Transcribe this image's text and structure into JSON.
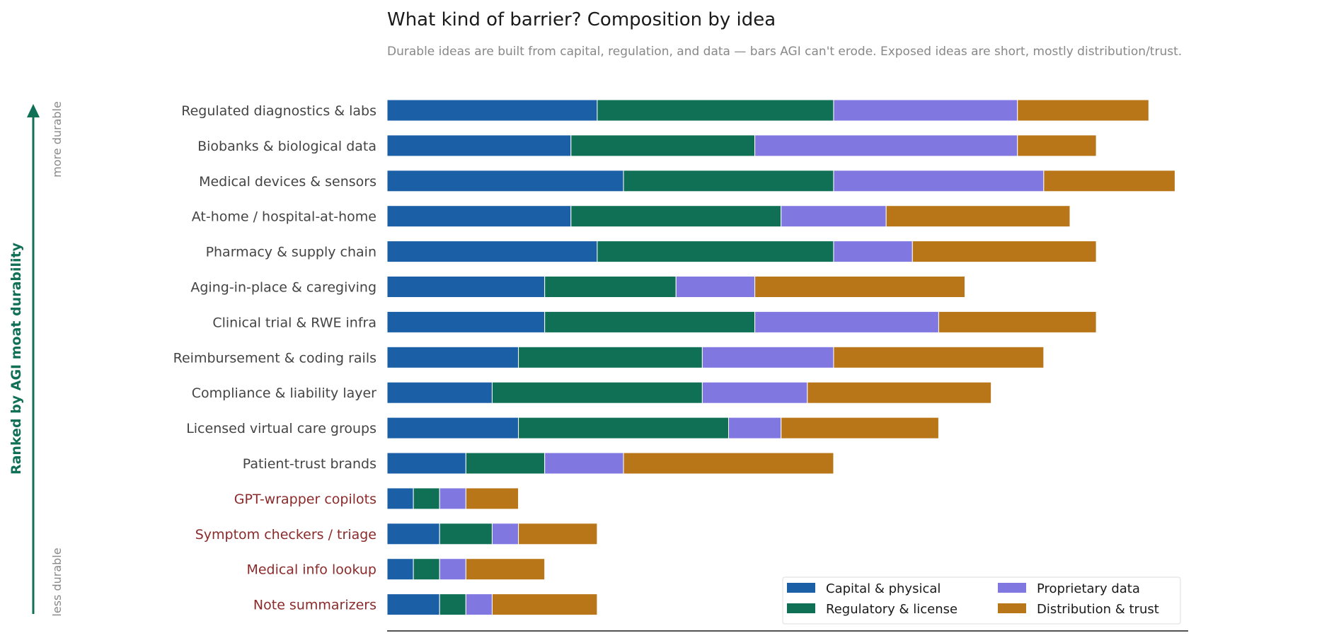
{
  "chart_data": {
    "type": "bar",
    "orientation": "horizontal",
    "stacked": true,
    "title": "What kind of barrier? Composition by idea",
    "subtitle": "Durable ideas are built from capital, regulation, and data — bars AGI can't erode. Exposed ideas are short, mostly distribution/trust.",
    "ylabel": "Ranked by AGI moat durability",
    "top_annotation": "more durable",
    "bottom_annotation": "less durable",
    "xlim": [
      0,
      30.5
    ],
    "grid": false,
    "legend_position": "bottom-right",
    "categories": [
      "Regulated diagnostics & labs",
      "Biobanks & biological data",
      "Medical devices & sensors",
      "At-home / hospital-at-home",
      "Pharmacy & supply chain",
      "Aging-in-place & caregiving",
      "Clinical trial & RWE infra",
      "Reimbursement & coding rails",
      "Compliance & liability layer",
      "Licensed virtual care groups",
      "Patient-trust brands",
      "GPT-wrapper copilots",
      "Symptom checkers / triage",
      "Medical info lookup",
      "Note summarizers"
    ],
    "exposed_categories": [
      "GPT-wrapper copilots",
      "Symptom checkers / triage",
      "Medical info lookup",
      "Note summarizers"
    ],
    "series": [
      {
        "name": "Capital & physical",
        "color": "#1b5fa7",
        "values": [
          8,
          7,
          9,
          7,
          8,
          6,
          6,
          5,
          4,
          5,
          3,
          1,
          2,
          1,
          2
        ]
      },
      {
        "name": "Regulatory & license",
        "color": "#0f7055",
        "values": [
          9,
          7,
          8,
          8,
          9,
          5,
          8,
          7,
          8,
          8,
          3,
          1,
          2,
          1,
          1
        ]
      },
      {
        "name": "Proprietary data",
        "color": "#8077e0",
        "values": [
          7,
          10,
          8,
          4,
          3,
          3,
          7,
          5,
          4,
          2,
          3,
          1,
          1,
          1,
          1
        ]
      },
      {
        "name": "Distribution & trust",
        "color": "#b97618",
        "values": [
          5,
          3,
          5,
          7,
          7,
          8,
          6,
          8,
          7,
          6,
          8,
          2,
          3,
          3,
          4
        ]
      }
    ],
    "colors": {
      "label_normal": "#444444",
      "label_exposed": "#8b2a2a",
      "accent": "#0f7055"
    }
  }
}
